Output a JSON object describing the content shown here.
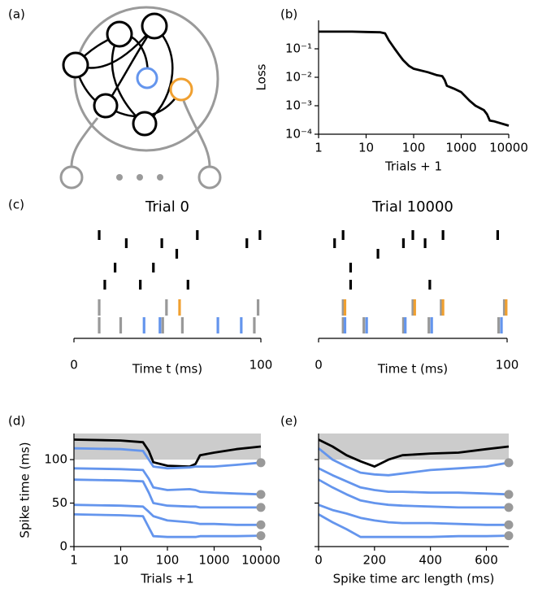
{
  "chart_data": [
    {
      "type": "diagram",
      "panel_label": "(a)"
    },
    {
      "type": "line",
      "panel_label": "(b)",
      "xlabel": "Trials + 1",
      "ylabel": "Loss",
      "xscale": "log",
      "yscale": "log",
      "xlim": [
        1,
        10000
      ],
      "ylim": [
        0.0001,
        1
      ],
      "xticks": [
        1,
        10,
        100,
        1000,
        10000
      ],
      "yticks": [
        {
          "value": 0.1,
          "label": "10⁻¹"
        },
        {
          "value": 0.01,
          "label": "10⁻²"
        },
        {
          "value": 0.001,
          "label": "10⁻³"
        },
        {
          "value": 0.0001,
          "label": "10⁻⁴"
        }
      ],
      "x": [
        1,
        5,
        10,
        20,
        25,
        30,
        40,
        50,
        60,
        80,
        100,
        200,
        300,
        400,
        450,
        500,
        700,
        1000,
        1500,
        2000,
        3000,
        3500,
        4000,
        5000,
        10000
      ],
      "series": [
        {
          "color": "#000000",
          "values": [
            0.4,
            0.4,
            0.39,
            0.38,
            0.35,
            0.2,
            0.1,
            0.06,
            0.04,
            0.025,
            0.02,
            0.015,
            0.012,
            0.011,
            0.008,
            0.005,
            0.004,
            0.003,
            0.0015,
            0.001,
            0.0007,
            0.0005,
            0.0003,
            0.00028,
            0.0002
          ]
        }
      ]
    },
    {
      "type": "raster",
      "panel_label": "(c)",
      "title": "Trial 0",
      "xlabel": "Time t (ms)",
      "xlim": [
        0,
        100
      ],
      "xticks": [
        0,
        100
      ],
      "rows": [
        [
          {
            "color": "#000000",
            "values": [
              13.5,
              66,
              99.5
            ]
          }
        ],
        [
          {
            "color": "#000000",
            "values": [
              28,
              47,
              92.5
            ]
          }
        ],
        [
          {
            "color": "#000000",
            "values": [
              55
            ]
          }
        ],
        [
          {
            "color": "#000000",
            "values": [
              22,
              42.5
            ]
          }
        ],
        [
          {
            "color": "#000000",
            "values": [
              16.5,
              35.5,
              61
            ]
          }
        ],
        [
          {
            "color": "#999999",
            "values": [
              13.5,
              49.5,
              98.5
            ]
          },
          {
            "color": "#f0a030",
            "values": [
              56.5
            ]
          }
        ],
        [
          {
            "color": "#999999",
            "values": [
              13.5,
              25,
              47.5,
              58,
              96.5
            ]
          },
          {
            "color": "#6495ed",
            "values": [
              37.5,
              46,
              77,
              89.5
            ]
          }
        ]
      ]
    },
    {
      "type": "raster",
      "title": "Trial 10000",
      "xlabel": "Time t (ms)",
      "xlim": [
        0,
        100
      ],
      "xticks": [
        0,
        100
      ],
      "rows": [
        [
          {
            "color": "#000000",
            "values": [
              13,
              50,
              66,
              95
            ]
          }
        ],
        [
          {
            "color": "#000000",
            "values": [
              8.5,
              45,
              56.5
            ]
          }
        ],
        [
          {
            "color": "#000000",
            "values": [
              31.5
            ]
          }
        ],
        [
          {
            "color": "#000000",
            "values": [
              17
            ]
          }
        ],
        [
          {
            "color": "#000000",
            "values": [
              17,
              59
            ]
          }
        ],
        [
          {
            "color": "#999999",
            "values": [
              13,
              50,
              65,
              98.5
            ]
          },
          {
            "color": "#f0a030",
            "values": [
              14,
              51,
              66,
              99.5
            ]
          }
        ],
        [
          {
            "color": "#999999",
            "values": [
              13,
              24,
              45,
              58.5,
              95.5
            ]
          },
          {
            "color": "#6495ed",
            "values": [
              14,
              25.5,
              46,
              60,
              97
            ]
          }
        ]
      ]
    },
    {
      "type": "line",
      "panel_label": "(d)",
      "xlabel": "Trials +1",
      "ylabel": "Spike time (ms)",
      "xscale": "log",
      "xlim": [
        1,
        10000
      ],
      "ylim": [
        0,
        130
      ],
      "xticks": [
        1,
        10,
        100,
        1000,
        10000
      ],
      "yticks": [
        0,
        50,
        100
      ],
      "shaded_range": [
        100,
        130
      ],
      "shade_color": "#cccccc",
      "x": [
        1,
        10,
        30,
        40,
        50,
        100,
        300,
        400,
        500,
        1000,
        3000,
        10000
      ],
      "series": [
        {
          "color": "#000000",
          "values": [
            123,
            122,
            120,
            110,
            97,
            93,
            92,
            95,
            105,
            108,
            112,
            115
          ]
        },
        {
          "color": "#6495ed",
          "values": [
            113,
            112,
            110,
            100,
            92,
            90,
            91,
            92,
            92,
            92,
            94,
            96.5
          ]
        },
        {
          "color": "#6495ed",
          "values": [
            90,
            89,
            88,
            78,
            68,
            65,
            66,
            65,
            63,
            62,
            61,
            60
          ]
        },
        {
          "color": "#6495ed",
          "values": [
            77,
            76,
            75,
            62,
            50,
            47,
            46,
            46,
            45,
            45,
            45,
            45
          ]
        },
        {
          "color": "#6495ed",
          "values": [
            48,
            47,
            46,
            40,
            35,
            30,
            28,
            27,
            26,
            26,
            25,
            25
          ]
        },
        {
          "color": "#6495ed",
          "values": [
            37,
            36,
            35,
            22,
            12,
            11,
            11,
            11,
            12,
            12,
            12,
            12.5
          ]
        }
      ],
      "targets": {
        "color": "#999999",
        "values": [
          96.5,
          60,
          45,
          25,
          12.5
        ]
      }
    },
    {
      "type": "line",
      "panel_label": "(e)",
      "xlabel": "Spike time arc length (ms)",
      "xlim": [
        0,
        680
      ],
      "ylim": [
        0,
        130
      ],
      "xticks": [
        0,
        200,
        400,
        600
      ],
      "yticks": [
        0,
        50,
        100
      ],
      "ytick_labels": false,
      "shaded_range": [
        100,
        130
      ],
      "shade_color": "#cccccc",
      "x": [
        0,
        50,
        100,
        150,
        200,
        250,
        300,
        400,
        500,
        600,
        680
      ],
      "series": [
        {
          "color": "#000000",
          "values": [
            123,
            115,
            105,
            98,
            92,
            100,
            105,
            107,
            108,
            112,
            115
          ]
        },
        {
          "color": "#6495ed",
          "values": [
            113,
            100,
            92,
            85,
            83,
            82,
            84,
            88,
            90,
            92,
            96.5
          ]
        },
        {
          "color": "#6495ed",
          "values": [
            90,
            82,
            75,
            68,
            65,
            63,
            63,
            62,
            62,
            61,
            60
          ]
        },
        {
          "color": "#6495ed",
          "values": [
            77,
            68,
            60,
            53,
            50,
            48,
            47,
            46,
            45,
            45,
            45
          ]
        },
        {
          "color": "#6495ed",
          "values": [
            48,
            42,
            38,
            33,
            30,
            28,
            27,
            27,
            26,
            25,
            25
          ]
        },
        {
          "color": "#6495ed",
          "values": [
            37,
            28,
            20,
            11,
            11,
            11,
            11,
            11,
            12,
            12,
            12.5
          ]
        }
      ],
      "targets": {
        "color": "#999999",
        "values": [
          96.5,
          60,
          45,
          25,
          12.5
        ]
      }
    }
  ]
}
